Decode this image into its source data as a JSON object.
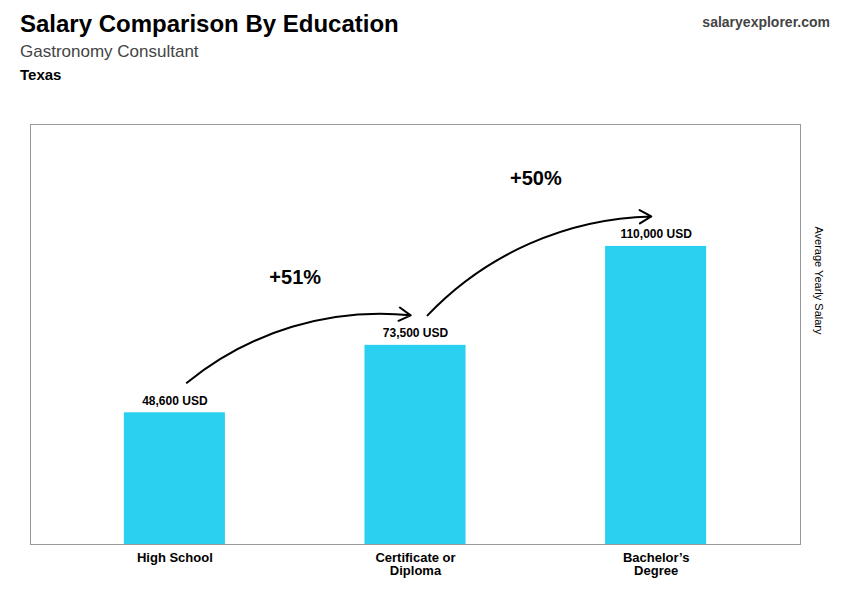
{
  "chart_data": {
    "type": "bar",
    "title": "Salary Comparison By Education",
    "subtitle": "Gastronomy Consultant",
    "ylabel": "Average Yearly Salary",
    "categories": [
      "High School",
      "Certificate or\nDiploma",
      "Bachelor’s\nDegree"
    ],
    "values": [
      48600,
      73500,
      110000
    ],
    "value_labels": [
      "48,600 USD",
      "73,500 USD",
      "110,000 USD"
    ],
    "data_labels": true,
    "color": "#29d0f0",
    "ylim": [
      0,
      155000
    ],
    "tick_labels": "x",
    "grid": false,
    "annotations": [
      {
        "text": "Texas"
      },
      {
        "text": "salaryexplorer.com"
      },
      {
        "text": "+51%",
        "from": "High School",
        "to": "Certificate or\nDiploma"
      },
      {
        "text": "+50%",
        "from": "Certificate or\nDiploma",
        "to": "Bachelor’s\nDegree"
      }
    ]
  }
}
